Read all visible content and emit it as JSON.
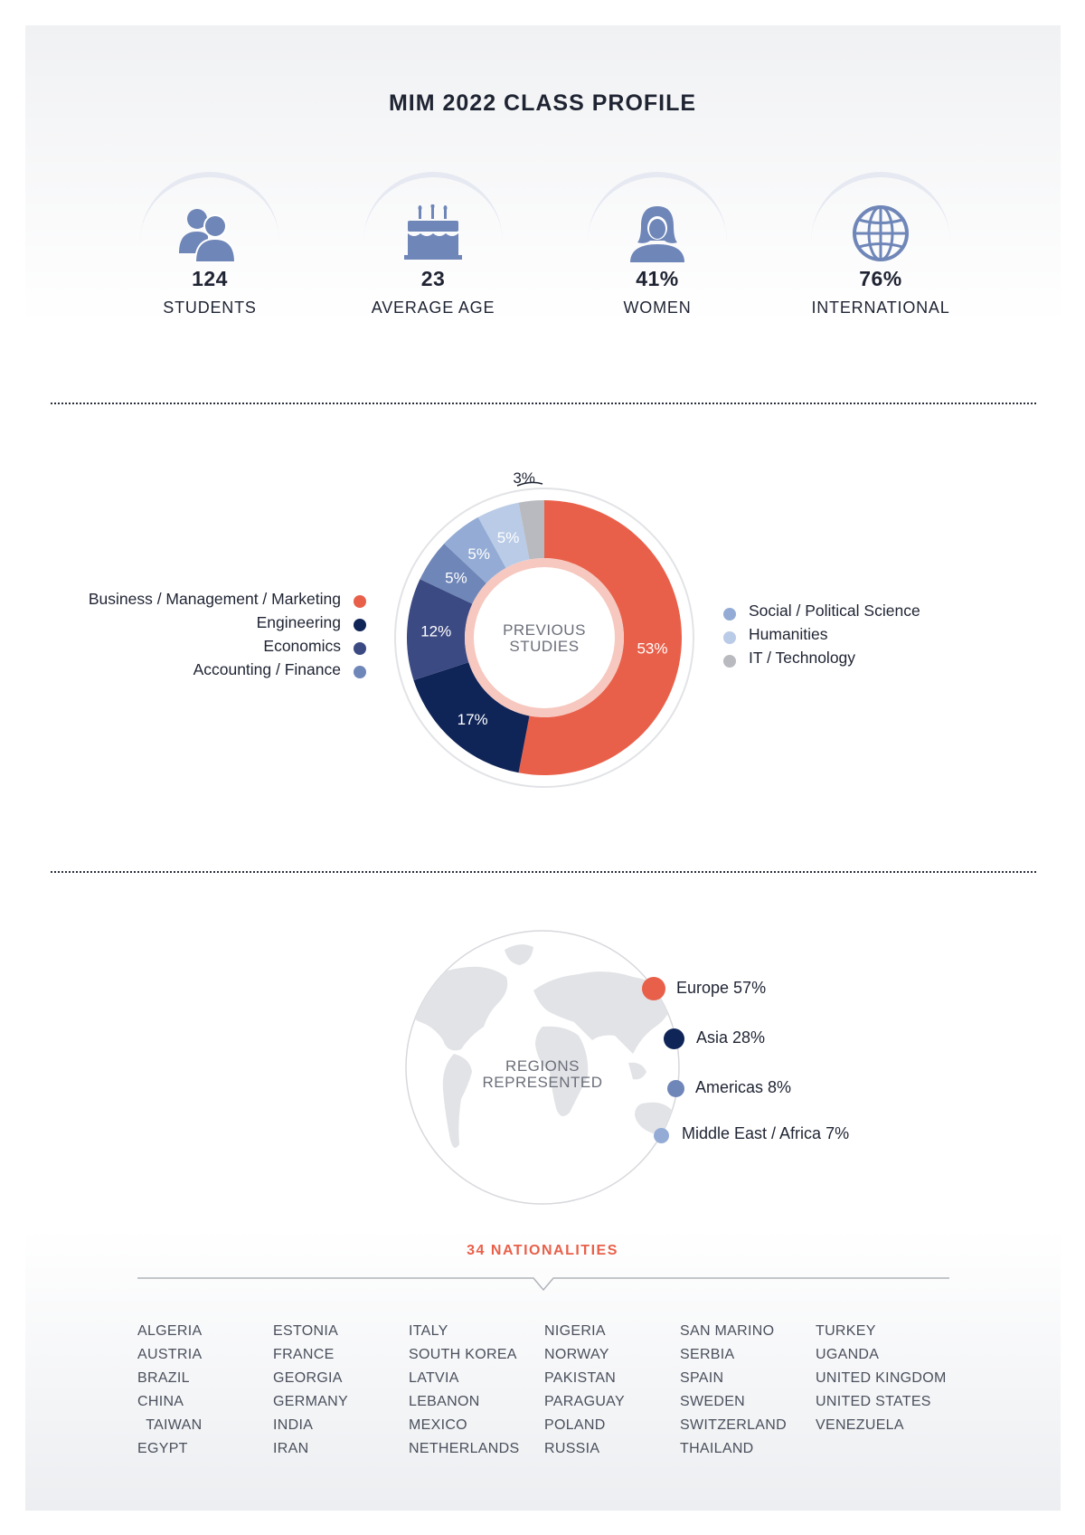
{
  "title": "MIM 2022 CLASS PROFILE",
  "stats": [
    {
      "value": "124",
      "label": "STUDENTS",
      "icon": "students-icon"
    },
    {
      "value": "23",
      "label": "AVERAGE AGE",
      "icon": "birthday-cake-icon"
    },
    {
      "value": "41%",
      "label": "WOMEN",
      "icon": "woman-icon"
    },
    {
      "value": "76%",
      "label": "INTERNATIONAL",
      "icon": "globe-icon"
    }
  ],
  "colors": {
    "accent": "#e9604a",
    "icon": "#6f86b8",
    "text": "#1f2433"
  },
  "chart_data": [
    {
      "type": "pie",
      "center_label": [
        "PREVIOUS",
        "STUDIES"
      ],
      "slices": [
        {
          "name": "Business / Management / Marketing",
          "value": 53,
          "label": "53%",
          "color": "#e9604a"
        },
        {
          "name": "Engineering",
          "value": 17,
          "label": "17%",
          "color": "#0f2457"
        },
        {
          "name": "Economics",
          "value": 12,
          "label": "12%",
          "color": "#3c4a83"
        },
        {
          "name": "Accounting / Finance",
          "value": 5,
          "label": "5%",
          "color": "#6f86b8"
        },
        {
          "name": "Social / Political Science",
          "value": 5,
          "label": "5%",
          "color": "#94acd5"
        },
        {
          "name": "Humanities",
          "value": 5,
          "label": "5%",
          "color": "#b9cbe6"
        },
        {
          "name": "IT / Technology",
          "value": 3,
          "label": "3%",
          "color": "#b8babf"
        }
      ],
      "legend_left": [
        "Business / Management / Marketing",
        "Engineering",
        "Economics",
        "Accounting / Finance"
      ],
      "legend_right": [
        "Social / Political Science",
        "Humanities",
        "IT / Technology"
      ]
    },
    {
      "type": "pie",
      "center_label": [
        "REGIONS",
        "REPRESENTED"
      ],
      "slices": [
        {
          "name": "Europe",
          "value": 57,
          "label": "Europe 57%",
          "color": "#e9604a"
        },
        {
          "name": "Asia",
          "value": 28,
          "label": "Asia 28%",
          "color": "#0f2457"
        },
        {
          "name": "Americas",
          "value": 8,
          "label": "Americas 8%",
          "color": "#6f86b8"
        },
        {
          "name": "Middle East / Africa",
          "value": 7,
          "label": "Middle East / Africa 7%",
          "color": "#94acd5"
        }
      ]
    }
  ],
  "nationalities": {
    "title": "34 NATIONALITIES",
    "columns": [
      [
        "ALGERIA",
        "AUSTRIA",
        "BRAZIL",
        "CHINA",
        "  TAIWAN",
        "EGYPT"
      ],
      [
        "ESTONIA",
        "FRANCE",
        "GEORGIA",
        "GERMANY",
        "INDIA",
        "IRAN"
      ],
      [
        "ITALY",
        "SOUTH KOREA",
        "LATVIA",
        "LEBANON",
        "MEXICO",
        "NETHERLANDS"
      ],
      [
        "NIGERIA",
        "NORWAY",
        "PAKISTAN",
        "PARAGUAY",
        "POLAND",
        "RUSSIA"
      ],
      [
        "SAN MARINO",
        "SERBIA",
        "SPAIN",
        "SWEDEN",
        "SWITZERLAND",
        "THAILAND"
      ],
      [
        "TURKEY",
        "UGANDA",
        "UNITED KINGDOM",
        "UNITED STATES",
        "VENEZUELA"
      ]
    ]
  }
}
